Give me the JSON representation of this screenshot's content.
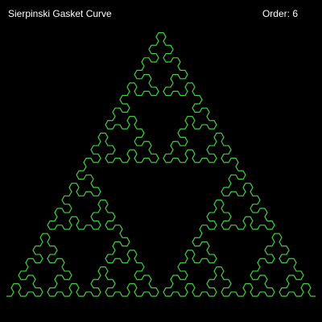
{
  "window": {
    "title": "Sierpinski Gasket Curve"
  },
  "hud": {
    "order_label": "Order:",
    "order_value": 6
  },
  "colors": {
    "background": "#000000",
    "text": "#ffffff",
    "curve": "#3cd23c"
  }
}
